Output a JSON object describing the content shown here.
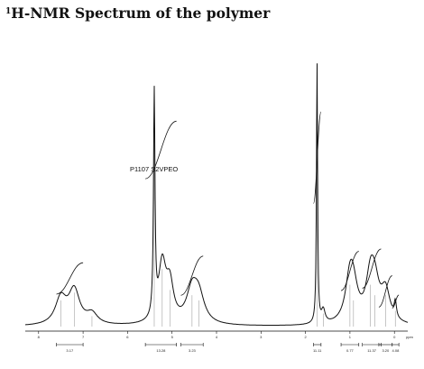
{
  "title": {
    "superscript": "1",
    "text": "H-NMR Spectrum of the polymer"
  },
  "sample_label": "P1107 S2VPEO",
  "chart_data": {
    "type": "line",
    "title": "1H-NMR Spectrum of the polymer",
    "xlabel": "ppm",
    "ylabel": "",
    "xlim": [
      8.3,
      -0.3
    ],
    "x_reversed": true,
    "grid": false,
    "x_ticks": [
      8,
      7,
      6,
      5,
      4,
      3,
      2,
      1,
      0
    ],
    "peaks": [
      {
        "ppm": 7.5,
        "height": 0.1,
        "width": 0.15
      },
      {
        "ppm": 7.2,
        "height": 0.13,
        "width": 0.15
      },
      {
        "ppm": 6.8,
        "height": 0.04,
        "width": 0.15
      },
      {
        "ppm": 5.4,
        "height": 0.85,
        "width": 0.02
      },
      {
        "ppm": 5.22,
        "height": 0.22,
        "width": 0.1
      },
      {
        "ppm": 5.05,
        "height": 0.14,
        "width": 0.1
      },
      {
        "ppm": 4.55,
        "height": 0.12,
        "width": 0.15
      },
      {
        "ppm": 4.4,
        "height": 0.1,
        "width": 0.15
      },
      {
        "ppm": 1.74,
        "height": 1.0,
        "width": 0.015
      },
      {
        "ppm": 1.6,
        "height": 0.05,
        "width": 0.05
      },
      {
        "ppm": 1.0,
        "height": 0.16,
        "width": 0.12
      },
      {
        "ppm": 0.92,
        "height": 0.1,
        "width": 0.12
      },
      {
        "ppm": 0.54,
        "height": 0.16,
        "width": 0.12
      },
      {
        "ppm": 0.44,
        "height": 0.12,
        "width": 0.12
      },
      {
        "ppm": 0.2,
        "height": 0.12,
        "width": 0.12
      },
      {
        "ppm": -0.02,
        "height": 0.06,
        "width": 0.03
      }
    ],
    "integrals": [
      {
        "ppm_start": 7.6,
        "ppm_end": 7.0,
        "rise": 0.12,
        "label": "3.17"
      },
      {
        "ppm_start": 5.6,
        "ppm_end": 4.9,
        "rise": 0.22,
        "label": "13.28"
      },
      {
        "ppm_start": 4.8,
        "ppm_end": 4.3,
        "rise": 0.15,
        "label": "3.23"
      },
      {
        "ppm_start": 1.82,
        "ppm_end": 1.65,
        "rise": 0.35,
        "label": "11.11"
      },
      {
        "ppm_start": 1.2,
        "ppm_end": 0.8,
        "rise": 0.15,
        "label": "0.77"
      },
      {
        "ppm_start": 0.72,
        "ppm_end": 0.3,
        "rise": 0.15,
        "label": "11.37"
      },
      {
        "ppm_start": 0.35,
        "ppm_end": 0.05,
        "rise": 0.12,
        "label": "3.20"
      },
      {
        "ppm_start": 0.05,
        "ppm_end": -0.1,
        "rise": 0.05,
        "label": "4.08"
      }
    ]
  }
}
